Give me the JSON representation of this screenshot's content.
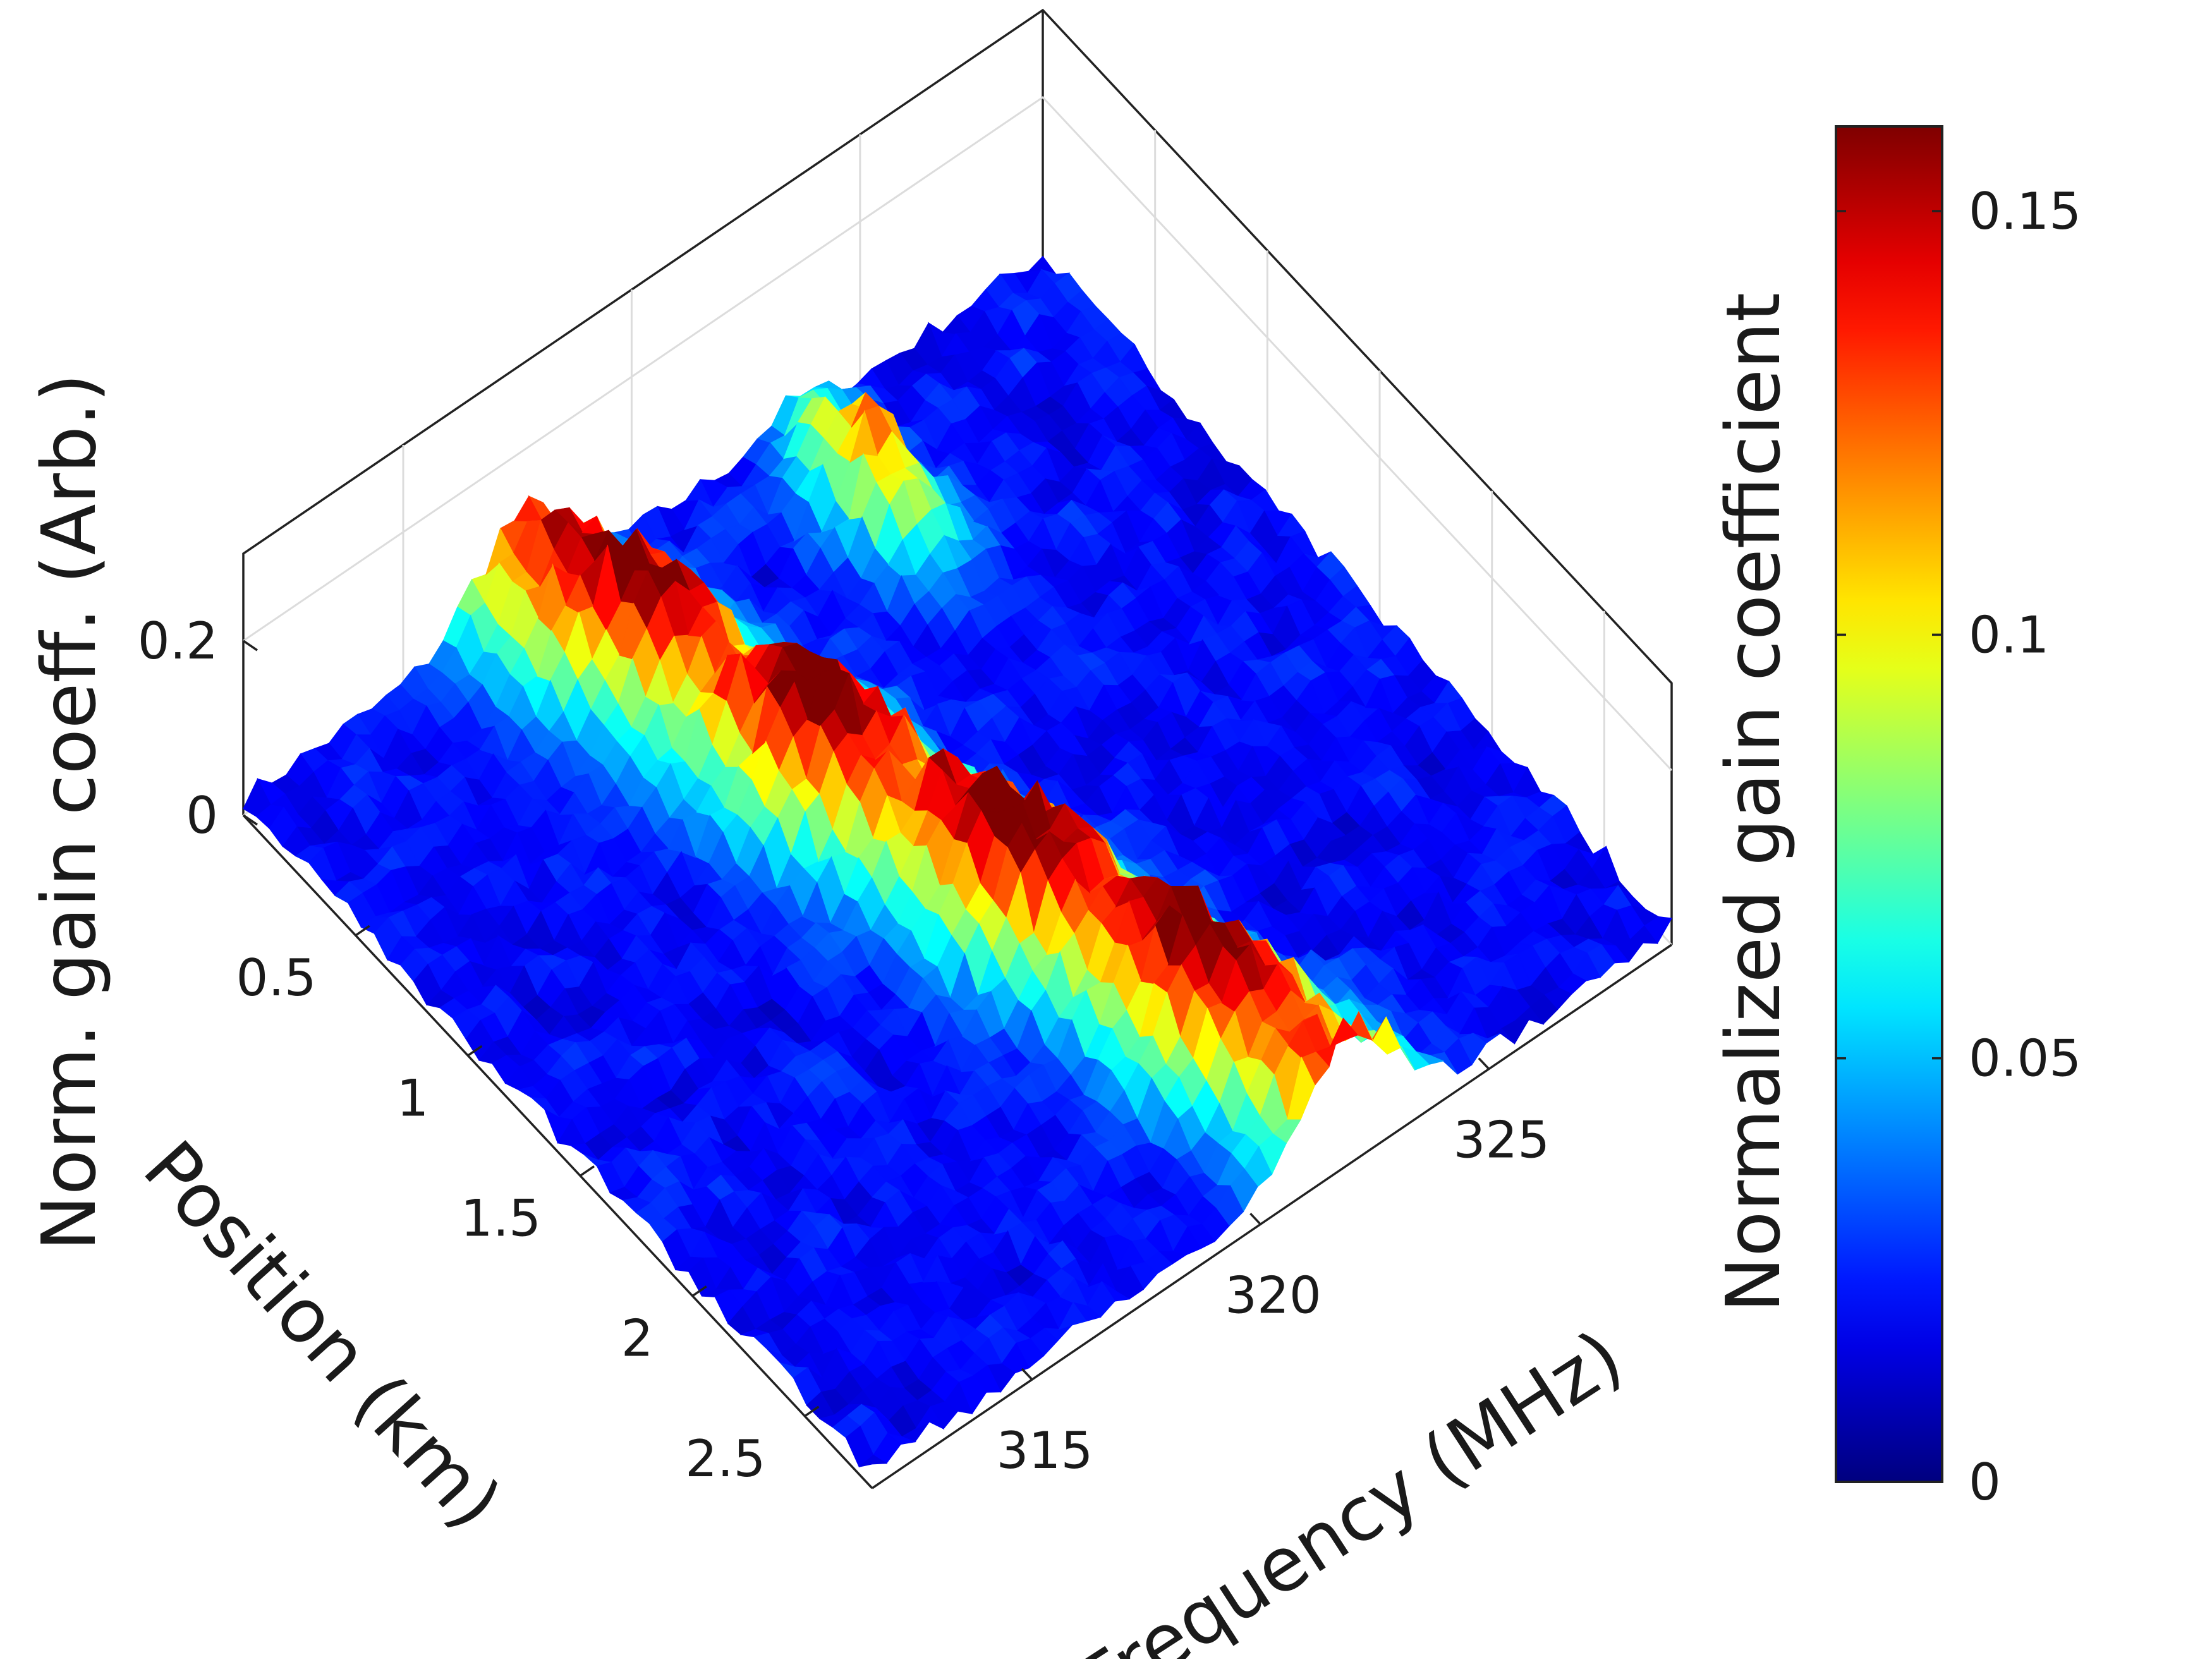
{
  "chart_data": {
    "type": "surface",
    "xlabel": "Frequency (MHz)",
    "ylabel": "Position (km)",
    "zlabel": "Norm. gain coeff. (Arb.)",
    "colorbar_label": "Normalized gain coefficient",
    "colormap": "jet",
    "colormap_stops": [
      "#00007f",
      "#0000ff",
      "#007fff",
      "#00ffff",
      "#7fff7f",
      "#ffff00",
      "#ff7f00",
      "#ff0000",
      "#7f0000"
    ],
    "x_ticks": [
      "315",
      "320",
      "325"
    ],
    "x_tick_values": [
      315,
      320,
      325
    ],
    "xlim": [
      311.5,
      329
    ],
    "y_ticks": [
      "0.5",
      "1",
      "1.5",
      "2",
      "2.5"
    ],
    "y_tick_values": [
      0.5,
      1,
      1.5,
      2,
      2.5
    ],
    "ylim": [
      0,
      2.8
    ],
    "z_ticks": [
      "0",
      "0.2"
    ],
    "z_tick_values": [
      0,
      0.2
    ],
    "zlim": [
      0,
      0.3
    ],
    "colorbar_ticks": [
      "0",
      "0.05",
      "0.1",
      "0.15"
    ],
    "colorbar_tick_values": [
      0,
      0.05,
      0.1,
      0.15
    ],
    "clim": [
      0,
      0.16
    ],
    "grid": true,
    "surface_model": {
      "baseline": 0.02,
      "peak_frequency_start_mhz": 317.5,
      "peak_frequency_end_mhz": 322,
      "peak_width_mhz": 1.4,
      "peak_amplitude": 0.15,
      "noise_amplitude": 0.018,
      "side_peak": {
        "frequency_mhz": 323.5,
        "position_km": 0.35,
        "amplitude": 0.1
      }
    }
  }
}
